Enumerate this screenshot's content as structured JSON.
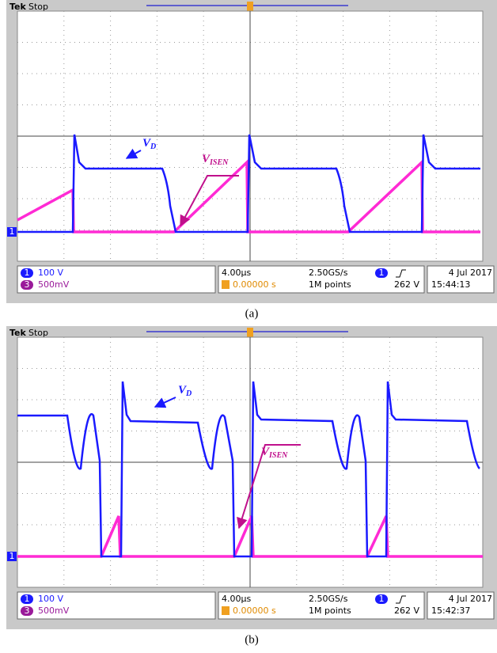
{
  "panels": [
    {
      "header": {
        "brand": "Tek",
        "status": "Stop"
      },
      "ground_marker": "1",
      "annotations": [
        {
          "main": "V",
          "sub": "D"
        },
        {
          "main": "V",
          "sub": "ISEN"
        }
      ],
      "channels": [
        {
          "number": "1",
          "scale": "100 V"
        },
        {
          "number": "3",
          "scale": "500mV"
        }
      ],
      "timebase": {
        "scale": "4.00µs",
        "position": "0.00000 s"
      },
      "acquisition": {
        "rate": "2.50GS/s",
        "length": "1M points"
      },
      "trigger": {
        "channel": "1",
        "level": "262 V"
      },
      "date": "4 Jul  2017",
      "time": "15:44:13",
      "caption": "(a)"
    },
    {
      "header": {
        "brand": "Tek",
        "status": "Stop"
      },
      "ground_marker": "1",
      "annotations": [
        {
          "main": "V",
          "sub": "D"
        },
        {
          "main": "V",
          "sub": "ISEN"
        }
      ],
      "channels": [
        {
          "number": "1",
          "scale": "100 V"
        },
        {
          "number": "3",
          "scale": "500mV"
        }
      ],
      "timebase": {
        "scale": "4.00µs",
        "position": "0.00000 s"
      },
      "acquisition": {
        "rate": "2.50GS/s",
        "length": "1M points"
      },
      "trigger": {
        "channel": "1",
        "level": "262 V"
      },
      "date": "4 Jul  2017",
      "time": "15:42:37",
      "caption": "(b)"
    }
  ]
}
